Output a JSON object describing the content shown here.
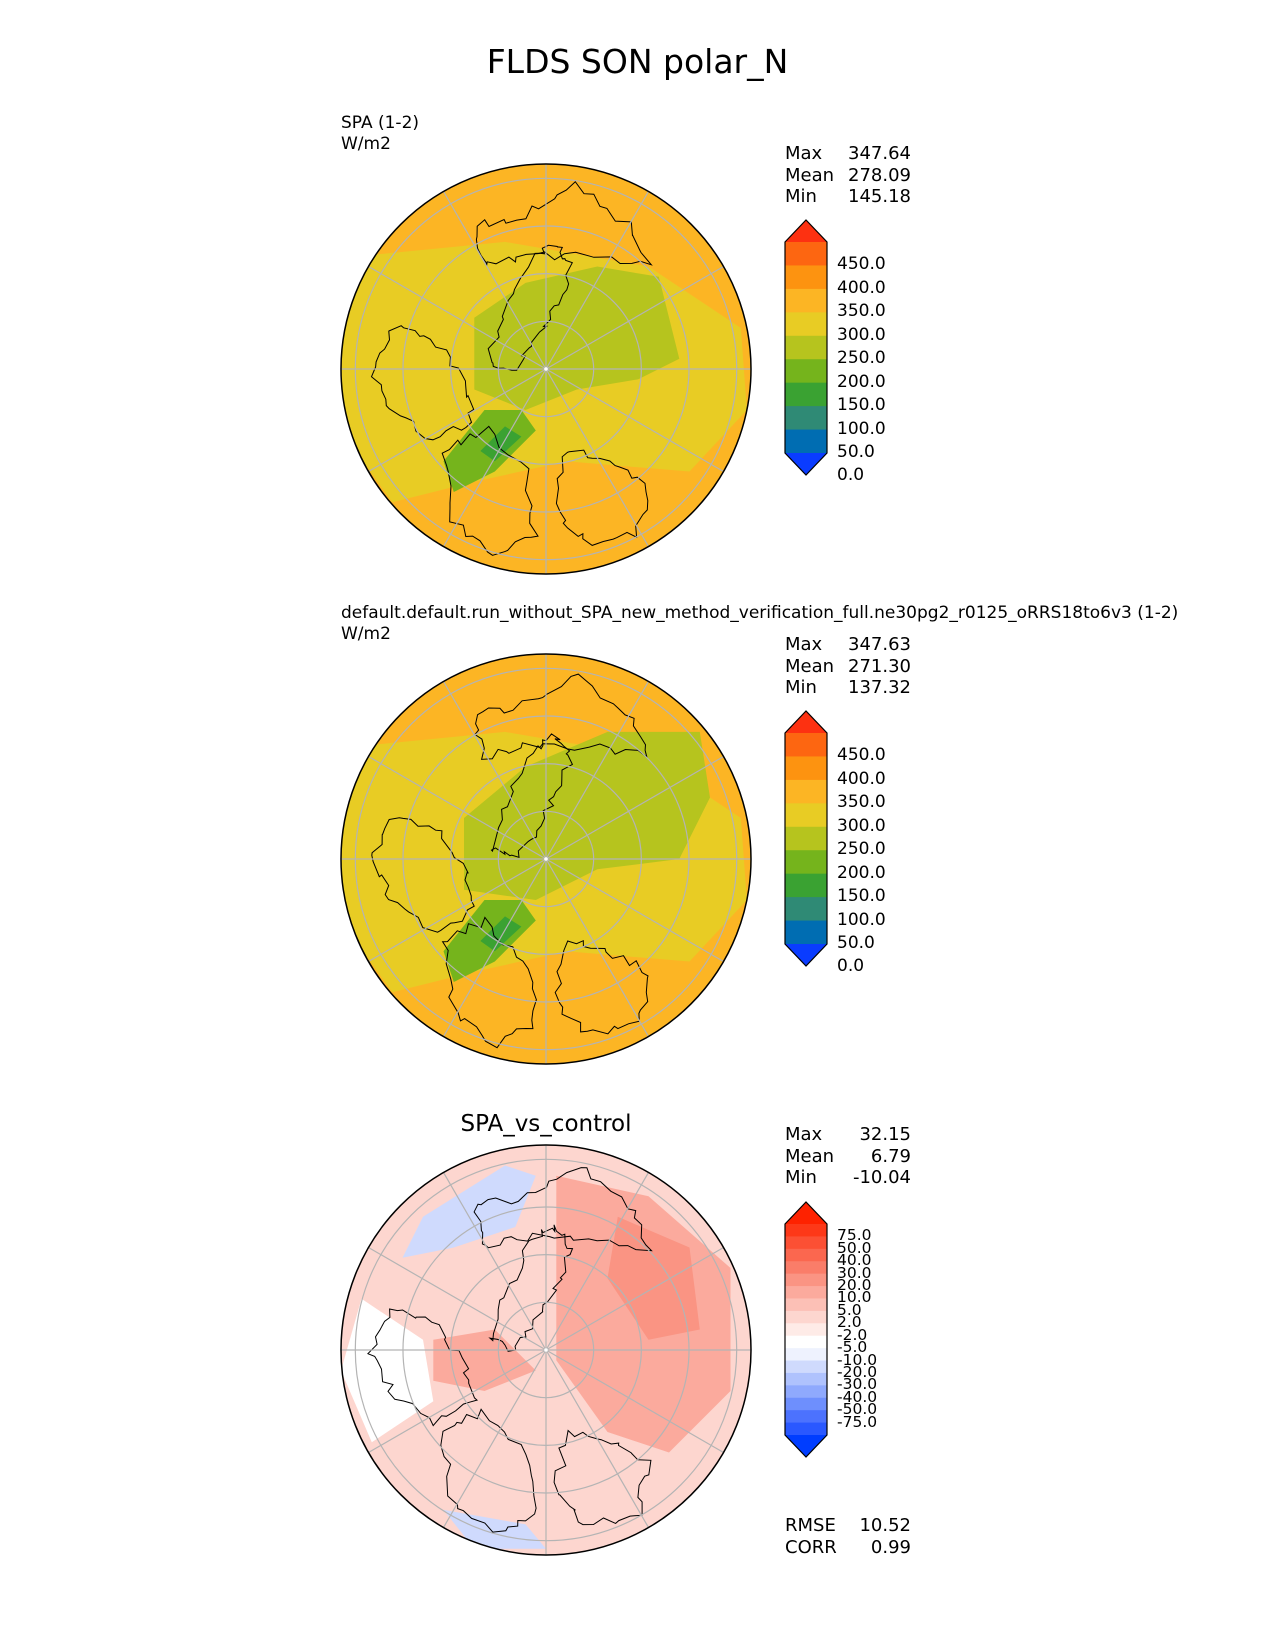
{
  "figure": {
    "title": "FLDS SON polar_N"
  },
  "palettes": {
    "abs": [
      "#0a3cff",
      "#006db2",
      "#2f8a75",
      "#3aa232",
      "#75b41c",
      "#b6c41e",
      "#e8cc24",
      "#fcb524",
      "#fd9310",
      "#fd6611",
      "#fd3111"
    ],
    "diff": [
      "#003dff",
      "#2a58ff",
      "#4c72fe",
      "#6e8ffd",
      "#8fa9fd",
      "#afc2fd",
      "#cfdafd",
      "#eef2fe",
      "#ffffff",
      "#feebe7",
      "#fdd6cf",
      "#fcc0b6",
      "#fbaa9d",
      "#fa9483",
      "#fa7d69",
      "#fb674f",
      "#fc5034",
      "#fd3818",
      "#fe2200"
    ]
  },
  "panels": [
    {
      "title_lines": [
        "SPA (1-2)",
        "W/m2"
      ],
      "stats": [
        {
          "label": "Max",
          "value": "347.64"
        },
        {
          "label": "Mean",
          "value": "278.09"
        },
        {
          "label": "Min",
          "value": "145.18"
        }
      ],
      "colorbar": {
        "palette": "abs",
        "ticks": [
          "450.0",
          "400.0",
          "350.0",
          "300.0",
          "250.0",
          "200.0",
          "150.0",
          "100.0",
          "50.0",
          "0.0"
        ]
      }
    },
    {
      "title_lines": [
        "default.default.run_without_SPA_new_method_verification_full.ne30pg2_r0125_oRRS18to6v3 (1-2)",
        "W/m2"
      ],
      "stats": [
        {
          "label": "Max",
          "value": "347.63"
        },
        {
          "label": "Mean",
          "value": "271.30"
        },
        {
          "label": "Min",
          "value": "137.32"
        }
      ],
      "colorbar": {
        "palette": "abs",
        "ticks": [
          "450.0",
          "400.0",
          "350.0",
          "300.0",
          "250.0",
          "200.0",
          "150.0",
          "100.0",
          "50.0",
          "0.0"
        ]
      }
    },
    {
      "title": "SPA_vs_control",
      "stats": [
        {
          "label": "Max",
          "value": "32.15"
        },
        {
          "label": "Mean",
          "value": "6.79"
        },
        {
          "label": "Min",
          "value": "-10.04"
        }
      ],
      "colorbar": {
        "palette": "diff",
        "ticks": [
          "75.0",
          "50.0",
          "40.0",
          "30.0",
          "20.0",
          "10.0",
          "5.0",
          "2.0",
          "-2.0",
          "-5.0",
          "-10.0",
          "-20.0",
          "-30.0",
          "-40.0",
          "-50.0",
          "-75.0"
        ]
      },
      "metrics": [
        {
          "label": "RMSE",
          "value": "10.52"
        },
        {
          "label": "CORR",
          "value": "0.99"
        }
      ]
    }
  ],
  "chart_data": [
    {
      "type": "heatmap",
      "projection": "north polar stereographic",
      "title": "SPA (1-2)",
      "units": "W/m2",
      "max": 347.64,
      "mean": 278.09,
      "min": 145.18,
      "levels": [
        0,
        50,
        100,
        150,
        200,
        250,
        300,
        350,
        400,
        450
      ],
      "extend": "both"
    },
    {
      "type": "heatmap",
      "projection": "north polar stereographic",
      "title": "default.default.run_without_SPA_new_method_verification_full.ne30pg2_r0125_oRRS18to6v3 (1-2)",
      "units": "W/m2",
      "max": 347.63,
      "mean": 271.3,
      "min": 137.32,
      "levels": [
        0,
        50,
        100,
        150,
        200,
        250,
        300,
        350,
        400,
        450
      ],
      "extend": "both"
    },
    {
      "type": "heatmap",
      "projection": "north polar stereographic",
      "title": "SPA_vs_control",
      "max": 32.15,
      "mean": 6.79,
      "min": -10.04,
      "rmse": 10.52,
      "corr": 0.99,
      "levels": [
        -75,
        -50,
        -40,
        -30,
        -20,
        -10,
        -5,
        -2,
        2,
        5,
        10,
        20,
        30,
        40,
        50,
        75
      ],
      "extend": "both"
    }
  ]
}
